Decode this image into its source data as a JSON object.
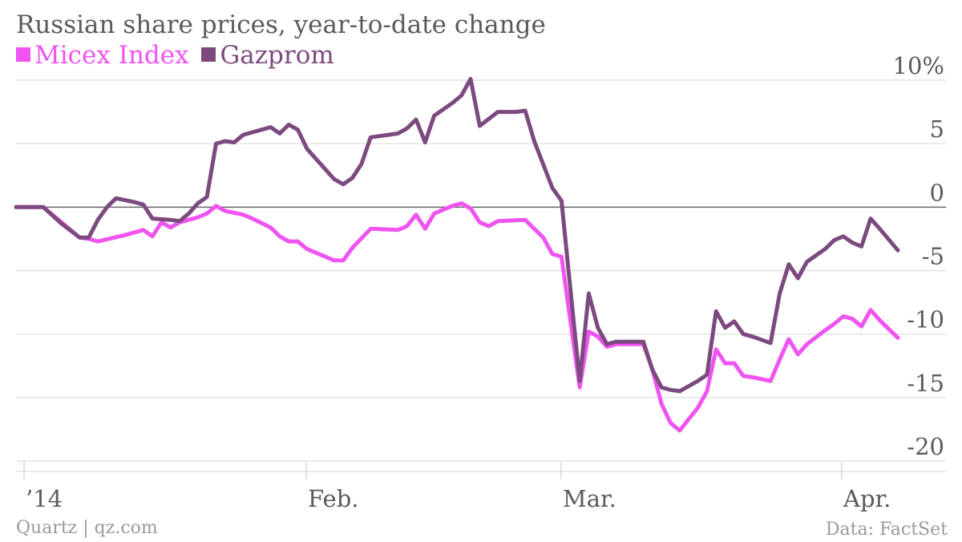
{
  "chart_data": {
    "type": "line",
    "title": "Russian share prices, year-to-date change",
    "source": "Data: FactSet",
    "credit": "Quartz | qz.com",
    "colors": {
      "micex": "#f054f0",
      "gazprom": "#7c4a7e",
      "grid": "#dcdcdc",
      "zero": "#666666"
    },
    "y_ticks": [
      {
        "value": 10,
        "label": "10%"
      },
      {
        "value": 5,
        "label": "5"
      },
      {
        "value": 0,
        "label": "0"
      },
      {
        "value": -5,
        "label": "-5"
      },
      {
        "value": -10,
        "label": "-10"
      },
      {
        "value": -15,
        "label": "-15"
      },
      {
        "value": -20,
        "label": "-20"
      }
    ],
    "ylim": [
      -20,
      10
    ],
    "x_ticks": [
      {
        "value": 1,
        "label": "’14"
      },
      {
        "value": 32,
        "label": "Feb."
      },
      {
        "value": 60,
        "label": "Mar."
      },
      {
        "value": 91,
        "label": "Apr."
      }
    ],
    "xlim": [
      0,
      102
    ],
    "series": [
      {
        "name": "Micex Index",
        "key": "micex",
        "points": [
          [
            0,
            0
          ],
          [
            3,
            0
          ],
          [
            5,
            -1.2
          ],
          [
            7,
            -2.4
          ],
          [
            8,
            -2.5
          ],
          [
            9,
            -2.7
          ],
          [
            12,
            -2.2
          ],
          [
            14,
            -1.8
          ],
          [
            15,
            -2.3
          ],
          [
            16,
            -1.2
          ],
          [
            17,
            -1.6
          ],
          [
            18,
            -1.2
          ],
          [
            20,
            -0.8
          ],
          [
            21,
            -0.5
          ],
          [
            22,
            0.1
          ],
          [
            23,
            -0.3
          ],
          [
            25,
            -0.6
          ],
          [
            26,
            -0.9
          ],
          [
            28,
            -1.6
          ],
          [
            29,
            -2.3
          ],
          [
            30,
            -2.7
          ],
          [
            31,
            -2.7
          ],
          [
            32,
            -3.3
          ],
          [
            34,
            -3.9
          ],
          [
            35,
            -4.2
          ],
          [
            36,
            -4.2
          ],
          [
            37,
            -3.2
          ],
          [
            39,
            -1.7
          ],
          [
            42,
            -1.8
          ],
          [
            43,
            -1.5
          ],
          [
            44,
            -0.6
          ],
          [
            45,
            -1.7
          ],
          [
            46,
            -0.5
          ],
          [
            48,
            0.1
          ],
          [
            49,
            0.3
          ],
          [
            50,
            -0.1
          ],
          [
            51,
            -1.2
          ],
          [
            52,
            -1.5
          ],
          [
            53,
            -1.1
          ],
          [
            56,
            -1.0
          ],
          [
            58,
            -2.4
          ],
          [
            59,
            -3.7
          ],
          [
            60,
            -3.9
          ],
          [
            62,
            -14.2
          ],
          [
            63,
            -9.8
          ],
          [
            64,
            -10.2
          ],
          [
            65,
            -11.0
          ],
          [
            66,
            -10.8
          ],
          [
            67,
            -10.8
          ],
          [
            68,
            -10.8
          ],
          [
            69,
            -10.8
          ],
          [
            70,
            -12.8
          ],
          [
            71,
            -15.5
          ],
          [
            72,
            -17.0
          ],
          [
            73,
            -17.6
          ],
          [
            75,
            -15.8
          ],
          [
            76,
            -14.5
          ],
          [
            77,
            -11.2
          ],
          [
            78,
            -12.3
          ],
          [
            79,
            -12.3
          ],
          [
            80,
            -13.3
          ],
          [
            81,
            -13.4
          ],
          [
            83,
            -13.7
          ],
          [
            84,
            -12.0
          ],
          [
            85,
            -10.4
          ],
          [
            86,
            -11.6
          ],
          [
            87,
            -10.8
          ],
          [
            89,
            -9.7
          ],
          [
            90,
            -9.2
          ],
          [
            91,
            -8.6
          ],
          [
            92,
            -8.8
          ],
          [
            93,
            -9.4
          ],
          [
            94,
            -8.1
          ],
          [
            95,
            -8.9
          ],
          [
            97,
            -10.3
          ]
        ]
      },
      {
        "name": "Gazprom",
        "key": "gazprom",
        "points": [
          [
            0,
            0
          ],
          [
            3,
            0
          ],
          [
            5,
            -1.3
          ],
          [
            7,
            -2.4
          ],
          [
            8,
            -2.4
          ],
          [
            9,
            -1.0
          ],
          [
            10,
            0.0
          ],
          [
            11,
            0.7
          ],
          [
            13,
            0.4
          ],
          [
            14,
            0.2
          ],
          [
            15,
            -0.9
          ],
          [
            17,
            -1.0
          ],
          [
            18,
            -1.1
          ],
          [
            19,
            -0.5
          ],
          [
            20,
            0.3
          ],
          [
            21,
            0.8
          ],
          [
            22,
            5.0
          ],
          [
            23,
            5.2
          ],
          [
            24,
            5.1
          ],
          [
            25,
            5.7
          ],
          [
            27,
            6.1
          ],
          [
            28,
            6.3
          ],
          [
            29,
            5.8
          ],
          [
            30,
            6.5
          ],
          [
            31,
            6.1
          ],
          [
            32,
            4.6
          ],
          [
            33,
            3.8
          ],
          [
            35,
            2.2
          ],
          [
            36,
            1.8
          ],
          [
            37,
            2.3
          ],
          [
            38,
            3.4
          ],
          [
            39,
            5.5
          ],
          [
            42,
            5.8
          ],
          [
            43,
            6.2
          ],
          [
            44,
            6.9
          ],
          [
            45,
            5.1
          ],
          [
            46,
            7.2
          ],
          [
            48,
            8.2
          ],
          [
            49,
            8.8
          ],
          [
            50,
            10.1
          ],
          [
            51,
            6.4
          ],
          [
            53,
            7.5
          ],
          [
            55,
            7.5
          ],
          [
            56,
            7.6
          ],
          [
            57,
            5.2
          ],
          [
            59,
            1.5
          ],
          [
            60,
            0.5
          ],
          [
            62,
            -13.7
          ],
          [
            63,
            -6.8
          ],
          [
            64,
            -9.5
          ],
          [
            65,
            -10.8
          ],
          [
            66,
            -10.6
          ],
          [
            67,
            -10.6
          ],
          [
            68,
            -10.6
          ],
          [
            69,
            -10.6
          ],
          [
            70,
            -12.8
          ],
          [
            71,
            -14.2
          ],
          [
            72,
            -14.4
          ],
          [
            73,
            -14.5
          ],
          [
            75,
            -13.7
          ],
          [
            76,
            -13.2
          ],
          [
            77,
            -8.2
          ],
          [
            78,
            -9.5
          ],
          [
            79,
            -9.0
          ],
          [
            80,
            -10.0
          ],
          [
            81,
            -10.2
          ],
          [
            83,
            -10.7
          ],
          [
            84,
            -6.8
          ],
          [
            85,
            -4.5
          ],
          [
            86,
            -5.6
          ],
          [
            87,
            -4.3
          ],
          [
            89,
            -3.3
          ],
          [
            90,
            -2.6
          ],
          [
            91,
            -2.3
          ],
          [
            92,
            -2.8
          ],
          [
            93,
            -3.1
          ],
          [
            94,
            -0.9
          ],
          [
            95,
            -1.7
          ],
          [
            97,
            -3.4
          ]
        ]
      }
    ]
  }
}
